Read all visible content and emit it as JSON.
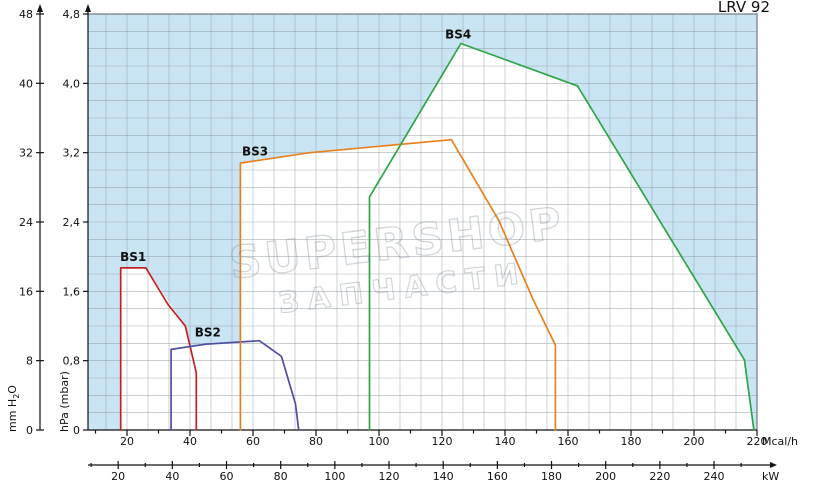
{
  "title": "LRV 92",
  "watermark": {
    "line1": "SUPERSHOP",
    "line2": "ЗАПЧАСТИ"
  },
  "chart_data": {
    "type": "area",
    "title": "LRV 92",
    "description": "Burner working field diagram: back pressure (hPa / mm H2O) versus heat output (Mcal/h and kW) with four working-field envelopes BS1-BS4",
    "labels": {
      "y_mm_main": "mm H",
      "y_mm_sub": "2",
      "y_mm_tail": "O",
      "y_hpa": "hPa (mbar)",
      "x_mcal": "Mcal/h",
      "x_kw": "kW"
    },
    "y_axes": [
      {
        "unit": "mm H2O",
        "ticks": [
          0,
          8,
          16,
          24,
          32,
          40,
          48
        ]
      },
      {
        "unit": "hPa (mbar)",
        "ticks": [
          0,
          0.8,
          1.6,
          2.4,
          3.2,
          4.0,
          4.8
        ],
        "tick_labels": [
          "0",
          "0,8",
          "1,6",
          "2,4",
          "3,2",
          "4,0",
          "4,8"
        ]
      }
    ],
    "x_axes": [
      {
        "unit": "Mcal/h",
        "ticks": [
          20,
          40,
          60,
          80,
          100,
          120,
          140,
          160,
          180,
          200,
          220
        ],
        "minor_step": 10
      },
      {
        "unit": "kW",
        "ticks": [
          20,
          40,
          60,
          80,
          100,
          120,
          140,
          160,
          180,
          200,
          220,
          240
        ],
        "minor_step": 10,
        "kw_per_mcal": 1.163
      }
    ],
    "x_range_mcal": [
      7.6,
      220
    ],
    "y_range_hpa": [
      0,
      4.8
    ],
    "grid": {
      "x_step_mcal": 6.667,
      "y_step_hpa": 0.2,
      "on": true
    },
    "colors": {
      "plot_bg": "#c9e5f4",
      "field_bg": "#ffffff",
      "grid": "#8d99a1",
      "border": "#5a6268",
      "axis": "#111111"
    },
    "series": [
      {
        "name": "BS1",
        "color": "#c42127",
        "label_at": [
          17.8,
          1.95
        ],
        "points": [
          [
            18,
            0
          ],
          [
            18,
            1.87
          ],
          [
            26,
            1.87
          ],
          [
            33,
            1.45
          ],
          [
            38.5,
            1.2
          ],
          [
            42,
            0.66
          ],
          [
            42,
            0
          ]
        ]
      },
      {
        "name": "BS2",
        "color": "#514d9f",
        "label_at": [
          41.5,
          1.08
        ],
        "points": [
          [
            34,
            0
          ],
          [
            34,
            0.93
          ],
          [
            45,
            0.99
          ],
          [
            62,
            1.03
          ],
          [
            69,
            0.85
          ],
          [
            73.5,
            0.3
          ],
          [
            74.5,
            0
          ]
        ]
      },
      {
        "name": "BS3",
        "color": "#e8811d",
        "label_at": [
          56.5,
          3.17
        ],
        "points": [
          [
            56,
            0
          ],
          [
            56,
            3.08
          ],
          [
            78,
            3.2
          ],
          [
            123,
            3.35
          ],
          [
            138,
            2.42
          ],
          [
            149,
            1.5
          ],
          [
            156,
            0.98
          ],
          [
            156,
            0
          ]
        ]
      },
      {
        "name": "BS4",
        "color": "#2fa348",
        "label_at": [
          121,
          4.52
        ],
        "points": [
          [
            97,
            0
          ],
          [
            97,
            2.69
          ],
          [
            126,
            4.46
          ],
          [
            163,
            3.97
          ],
          [
            216,
            0.81
          ],
          [
            219,
            0
          ]
        ]
      }
    ],
    "envelope": [
      [
        18,
        0
      ],
      [
        18,
        1.87
      ],
      [
        26,
        1.87
      ],
      [
        38.5,
        1.2
      ],
      [
        40,
        0.97
      ],
      [
        56,
        1.0
      ],
      [
        56,
        3.08
      ],
      [
        78,
        3.2
      ],
      [
        107,
        3.3
      ],
      [
        126,
        4.46
      ],
      [
        163,
        3.97
      ],
      [
        216,
        0.81
      ],
      [
        219,
        0
      ]
    ],
    "legend_position": "inline-curve-labels"
  }
}
